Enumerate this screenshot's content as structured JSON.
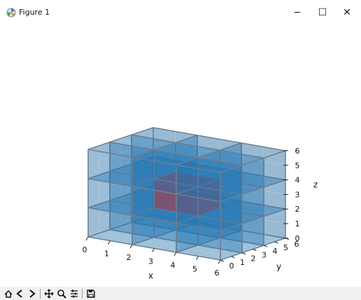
{
  "window": {
    "title": "Figure 1",
    "controls": {
      "minimize": "−",
      "maximize": "☐",
      "close": "✕"
    }
  },
  "toolbar": {
    "buttons": [
      "home-icon",
      "back-icon",
      "forward-icon",
      "pan-icon",
      "zoom-icon",
      "configure-subplots-icon",
      "save-icon"
    ]
  },
  "chart_data": {
    "type": "3d-voxels",
    "xlabel": "x",
    "ylabel": "y",
    "zlabel": "z",
    "xlim": [
      0,
      6
    ],
    "ylim": [
      0,
      6
    ],
    "zlim": [
      0,
      6
    ],
    "xticks": [
      "0",
      "1",
      "2",
      "3",
      "4",
      "5",
      "6"
    ],
    "yticks": [
      "0",
      "1",
      "2",
      "3",
      "4",
      "5",
      "6"
    ],
    "zticks": [
      "0",
      "1",
      "2",
      "3",
      "4",
      "5",
      "6"
    ],
    "grid": true,
    "voxels": [
      {
        "name": "outer",
        "x": [
          0,
          6
        ],
        "y": [
          0,
          6
        ],
        "z": [
          0,
          6
        ],
        "divisions": 3,
        "color": "#1f77b4"
      },
      {
        "name": "center",
        "x": [
          2,
          4
        ],
        "y": [
          2,
          4
        ],
        "z": [
          2,
          4
        ],
        "color": "#d62728"
      }
    ]
  }
}
